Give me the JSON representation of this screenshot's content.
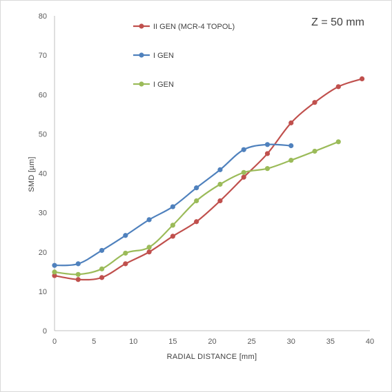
{
  "chart_data": {
    "type": "line",
    "title": "",
    "annotation": "Z = 50 mm",
    "xlabel": "RADIAL DISTANCE [mm]",
    "ylabel": "SMD [µm]",
    "xlim": [
      0,
      40
    ],
    "ylim": [
      0,
      80
    ],
    "x_ticks": [
      0,
      5,
      10,
      15,
      20,
      25,
      30,
      35,
      40
    ],
    "y_ticks": [
      0,
      10,
      20,
      30,
      40,
      50,
      60,
      70,
      80
    ],
    "grid": "none",
    "legend_placement": "top-center",
    "smooth": true,
    "series": [
      {
        "name": "II GEN (MCR-4 TOPOL)",
        "color": "#C0504D",
        "x": [
          0,
          3,
          6,
          9,
          12,
          15,
          18,
          21,
          24,
          27,
          30,
          33,
          36,
          39
        ],
        "y": [
          14,
          13,
          13.5,
          17,
          20,
          24,
          27.7,
          33,
          39,
          45,
          52.8,
          58,
          62,
          64
        ]
      },
      {
        "name": "I GEN",
        "color": "#4F81BD",
        "x": [
          0,
          3,
          6,
          9,
          12,
          15,
          18,
          21,
          24,
          27,
          30
        ],
        "y": [
          16.6,
          17,
          20.4,
          24.2,
          28.2,
          31.5,
          36.3,
          40.9,
          46,
          47.3,
          47
        ]
      },
      {
        "name": "I GEN",
        "color": "#9BBB59",
        "x": [
          0,
          3,
          6,
          9,
          12,
          15,
          18,
          21,
          24,
          27,
          30,
          33,
          36
        ],
        "y": [
          14.9,
          14.3,
          15.7,
          19.7,
          21.2,
          26.8,
          33,
          37.2,
          40.2,
          41.2,
          43.3,
          45.6,
          48
        ]
      }
    ]
  }
}
